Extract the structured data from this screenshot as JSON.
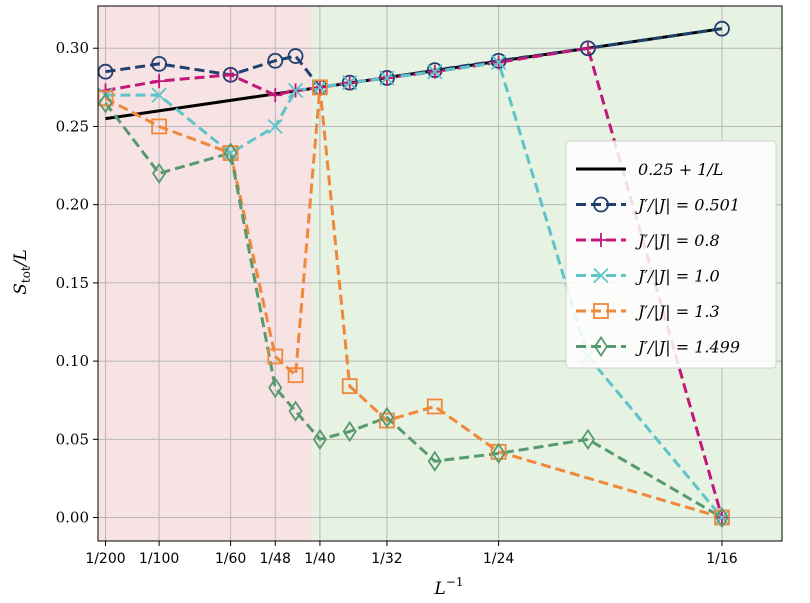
{
  "chart_data": {
    "type": "line",
    "xlabel": "L",
    "xlabel_sup": "−1",
    "ylabel": "S",
    "ylabel_sub": "tot",
    "ylabel_tail": "/L",
    "xlim": [
      0.0043,
      0.0681
    ],
    "ylim": [
      -0.015,
      0.327
    ],
    "x_ticks": [
      {
        "value": 0.005,
        "label": "1/200"
      },
      {
        "value": 0.01,
        "label": "1/100"
      },
      {
        "value": 0.016667,
        "label": "1/60"
      },
      {
        "value": 0.020833,
        "label": "1/48"
      },
      {
        "value": 0.025,
        "label": "1/40"
      },
      {
        "value": 0.03125,
        "label": "1/32"
      },
      {
        "value": 0.041667,
        "label": "1/24"
      },
      {
        "value": 0.0625,
        "label": "1/16"
      }
    ],
    "y_ticks": [
      {
        "value": 0.0,
        "label": "0.00"
      },
      {
        "value": 0.05,
        "label": "0.05"
      },
      {
        "value": 0.1,
        "label": "0.10"
      },
      {
        "value": 0.15,
        "label": "0.15"
      },
      {
        "value": 0.2,
        "label": "0.20"
      },
      {
        "value": 0.25,
        "label": "0.25"
      },
      {
        "value": 0.3,
        "label": "0.30"
      }
    ],
    "grid": true,
    "regions": [
      {
        "x_from": 0.0043,
        "x_to": 0.02425,
        "color": "#f7e3e3"
      },
      {
        "x_to": 0.0681,
        "x_from": 0.02425,
        "color": "#e6f2e2"
      }
    ],
    "legend_position": "center-right",
    "series": [
      {
        "name": "0.25 + 1/L",
        "style": "solid",
        "marker": "none",
        "color": "#000000",
        "x": [
          0.005,
          0.0625
        ],
        "y": [
          0.255,
          0.3125
        ]
      },
      {
        "name": "J′/|J| = 0.501",
        "style": "dashed",
        "marker": "circle",
        "color": "#1f3f6e",
        "x": [
          0.005,
          0.01,
          0.016667,
          0.020833,
          0.022727,
          0.025,
          0.027778,
          0.03125,
          0.035714,
          0.041667,
          0.05,
          0.0625
        ],
        "y": [
          0.285,
          0.29,
          0.283,
          0.292,
          0.295,
          0.275,
          0.278,
          0.281,
          0.286,
          0.292,
          0.3,
          0.3125
        ]
      },
      {
        "name": "J′/|J| = 0.8",
        "style": "dashed",
        "marker": "plus",
        "color": "#c2187a",
        "x": [
          0.005,
          0.01,
          0.016667,
          0.020833,
          0.022727,
          0.025,
          0.027778,
          0.03125,
          0.035714,
          0.041667,
          0.05,
          0.0625
        ],
        "y": [
          0.273,
          0.279,
          0.283,
          0.27,
          0.273,
          0.275,
          0.278,
          0.281,
          0.285,
          0.291,
          0.3,
          0.0
        ]
      },
      {
        "name": "J′/|J| = 1.0",
        "style": "dashed",
        "marker": "x",
        "color": "#5ec4c8",
        "x": [
          0.005,
          0.01,
          0.016667,
          0.020833,
          0.022727,
          0.025,
          0.027778,
          0.03125,
          0.035714,
          0.041667,
          0.05,
          0.0625
        ],
        "y": [
          0.27,
          0.27,
          0.233,
          0.25,
          0.273,
          0.275,
          0.278,
          0.281,
          0.285,
          0.291,
          0.103,
          0.0
        ]
      },
      {
        "name": "J′/|J| = 1.3",
        "style": "dashed",
        "marker": "square",
        "color": "#f0883c",
        "x": [
          0.005,
          0.01,
          0.016667,
          0.020833,
          0.022727,
          0.025,
          0.027778,
          0.03125,
          0.035714,
          0.041667,
          0.0625
        ],
        "y": [
          0.268,
          0.25,
          0.233,
          0.103,
          0.091,
          0.275,
          0.084,
          0.062,
          0.071,
          0.042,
          0.0
        ]
      },
      {
        "name": "J′/|J| = 1.499",
        "style": "dashed",
        "marker": "diamond",
        "color": "#569a6e",
        "x": [
          0.005,
          0.01,
          0.016667,
          0.020833,
          0.022727,
          0.025,
          0.027778,
          0.03125,
          0.035714,
          0.041667,
          0.05,
          0.0625
        ],
        "y": [
          0.265,
          0.22,
          0.233,
          0.083,
          0.068,
          0.05,
          0.055,
          0.064,
          0.036,
          0.041,
          0.05,
          0.0
        ]
      }
    ]
  }
}
